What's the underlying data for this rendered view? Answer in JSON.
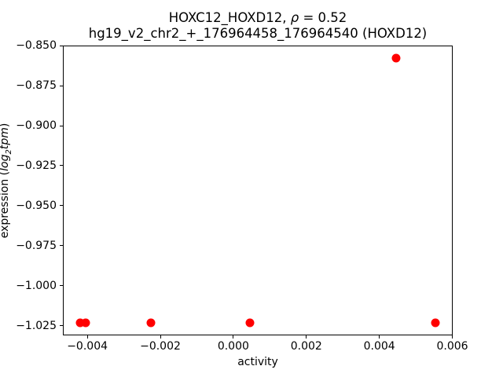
{
  "figure": {
    "title_line1": {
      "prefix": "HOXC12_HOXD12, ",
      "rho": "ρ",
      "suffix": " = 0.52"
    },
    "title_line2": "hg19_v2_chr2_+_176964458_176964540 (HOXD12)",
    "xlabel": "activity",
    "ylabel": {
      "prefix": "expression (",
      "log": "log",
      "sub": "2",
      "tpm": "tpm",
      "suffix": ")"
    }
  },
  "chart_data": {
    "type": "scatter",
    "title": "HOXC12_HOXD12, ρ = 0.52\nhg19_v2_chr2_+_176964458_176964540 (HOXD12)",
    "xlabel": "activity",
    "ylabel": "expression (log2 tpm)",
    "marker_color": "#ff0000",
    "grid": false,
    "legend": null,
    "xlim": [
      -0.00467,
      0.00601
    ],
    "ylim": [
      -1.031,
      -0.84995
    ],
    "xticks": [
      -0.004,
      -0.002,
      0.0,
      0.002,
      0.004,
      0.006
    ],
    "yticks": [
      -0.85,
      -0.875,
      -0.9,
      -0.925,
      -0.95,
      -0.975,
      -1.0,
      -1.025
    ],
    "xtick_labels": [
      "−0.004",
      "−0.002",
      "0.000",
      "0.002",
      "0.004",
      "0.006"
    ],
    "ytick_labels": [
      "−0.850",
      "−0.875",
      "−0.900",
      "−0.925",
      "−0.950",
      "−0.975",
      "−1.000",
      "−1.025"
    ],
    "points": [
      {
        "x": -0.0042,
        "y": -1.0232
      },
      {
        "x": -0.00405,
        "y": -1.0232
      },
      {
        "x": -0.00225,
        "y": -1.0232
      },
      {
        "x": 0.00045,
        "y": -1.0232
      },
      {
        "x": 0.00447,
        "y": -0.8578
      },
      {
        "x": 0.00554,
        "y": -1.0232
      }
    ]
  }
}
